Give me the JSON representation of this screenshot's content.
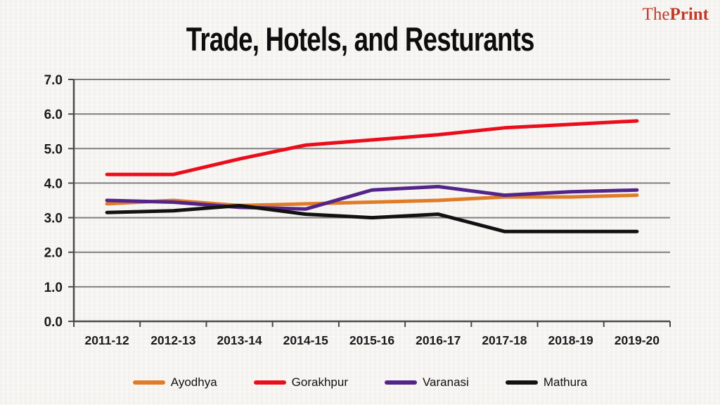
{
  "logo": {
    "part1": "The",
    "part2": "Print",
    "color": "#c13a28"
  },
  "title": "Trade, Hotels, and Resturants",
  "chart_data": {
    "type": "line",
    "categories": [
      "2011-12",
      "2012-13",
      "2013-14",
      "2014-15",
      "2015-16",
      "2016-17",
      "2017-18",
      "2018-19",
      "2019-20"
    ],
    "series": [
      {
        "name": "Ayodhya",
        "color": "#e07b28",
        "values": [
          3.4,
          3.5,
          3.35,
          3.4,
          3.45,
          3.5,
          3.6,
          3.6,
          3.65
        ]
      },
      {
        "name": "Gorakhpur",
        "color": "#ea0e1c",
        "values": [
          4.25,
          4.25,
          4.7,
          5.1,
          5.25,
          5.4,
          5.6,
          5.7,
          5.8
        ]
      },
      {
        "name": "Varanasi",
        "color": "#53258a",
        "values": [
          3.5,
          3.45,
          3.3,
          3.25,
          3.8,
          3.9,
          3.65,
          3.75,
          3.8
        ]
      },
      {
        "name": "Mathura",
        "color": "#121212",
        "values": [
          3.15,
          3.2,
          3.35,
          3.1,
          3.0,
          3.1,
          2.6,
          2.6,
          2.6
        ]
      }
    ],
    "title": "Trade, Hotels, and Resturants",
    "xlabel": "",
    "ylabel": "",
    "ylim": [
      0,
      7
    ],
    "ytick_labels": [
      "0.0",
      "1.0",
      "2.0",
      "3.0",
      "4.0",
      "5.0",
      "6.0",
      "7.0"
    ],
    "grid": true,
    "legend_position": "bottom",
    "axis_color": "#4a4a4a",
    "grid_color": "#7f7f7f",
    "label_color": "#1a1a1a"
  }
}
